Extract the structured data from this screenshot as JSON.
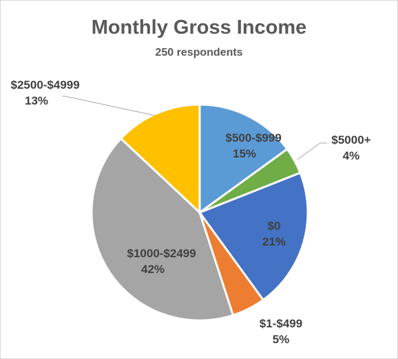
{
  "chart_data": {
    "type": "pie",
    "title": "Monthly Gross Income",
    "subtitle": "250 respondents",
    "categories": [
      "$500-$999",
      "$5000+",
      "$0",
      "$1-$499",
      "$1000-$2499",
      "$2500-$4999"
    ],
    "values": [
      15,
      4,
      21,
      5,
      42,
      13
    ],
    "value_labels": [
      "15%",
      "4%",
      "21%",
      "5%",
      "42%",
      "13%"
    ],
    "colors": [
      "#5b9bd5",
      "#70ad47",
      "#4472c4",
      "#ed7d31",
      "#a5a5a5",
      "#ffc000"
    ]
  }
}
